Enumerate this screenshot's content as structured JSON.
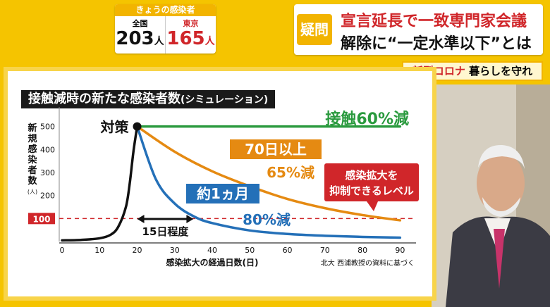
{
  "counts": {
    "title": "きょうの感染者",
    "national_label": "全国",
    "national_value": "203",
    "tokyo_label": "東京",
    "tokyo_value": "165",
    "unit": "人"
  },
  "headline": {
    "badge": "疑問",
    "line1": "宣言延長で一致専門家会議",
    "line2": "解除に“一定水準以下”とは"
  },
  "corona_tag": {
    "red": "新型コロナ",
    "rest": " 暮らしを守れ"
  },
  "panel": {
    "title": "接触減時の新たな感染者数",
    "title_sub": "(シミュレーション)"
  },
  "chart_data": {
    "type": "line",
    "title": "接触減時の新たな感染者数(シミュレーション)",
    "ylabel": "新規感染者数(人)",
    "xlabel": "感染拡大の経過日数(日)",
    "source": "北大 西浦教授の資料に基づく",
    "xlim": [
      0,
      92
    ],
    "ylim": [
      0,
      560
    ],
    "x_ticks": [
      0,
      10,
      20,
      30,
      40,
      50,
      60,
      70,
      80,
      90
    ],
    "y_ticks": [
      200,
      300,
      400,
      500
    ],
    "threshold": {
      "value": 100,
      "label": "100",
      "color": "#d0262a"
    },
    "measure_point": {
      "x": 20,
      "y": 500,
      "label": "対策"
    },
    "bracket": {
      "from": 20,
      "to": 35,
      "label": "15日程度"
    },
    "series": [
      {
        "name": "接触60%減",
        "color": "#2a9a3e",
        "x": [
          20,
          30,
          40,
          50,
          60,
          70,
          80,
          90
        ],
        "y": [
          500,
          500,
          500,
          500,
          500,
          500,
          500,
          500
        ]
      },
      {
        "name": "65%減",
        "color": "#e58a12",
        "x": [
          20,
          30,
          40,
          50,
          60,
          70,
          80,
          90
        ],
        "y": [
          500,
          390,
          305,
          240,
          185,
          145,
          115,
          92
        ]
      },
      {
        "name": "80%減",
        "color": "#2470b8",
        "x": [
          20,
          25,
          30,
          35,
          40,
          50,
          60,
          70,
          80,
          90
        ],
        "y": [
          500,
          270,
          165,
          110,
          80,
          48,
          33,
          25,
          20,
          17
        ]
      },
      {
        "name": "",
        "color": "#111111",
        "x": [
          0,
          5,
          10,
          13,
          15,
          17,
          18,
          19,
          20
        ],
        "y": [
          5,
          7,
          14,
          30,
          65,
          150,
          250,
          390,
          500
        ]
      }
    ],
    "annotations": {
      "label_70": "70日以上",
      "label_65": "65%減",
      "label_1m": "約1ヵ月",
      "label_80": "80%減",
      "callout": [
        "感染拡大を",
        "抑制できるレベル"
      ]
    }
  }
}
